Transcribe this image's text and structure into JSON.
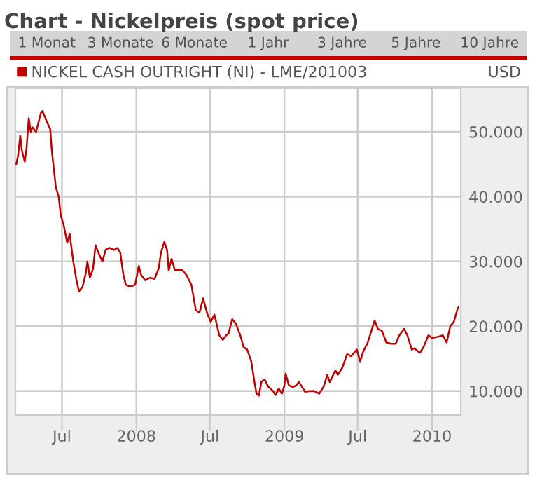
{
  "chart_data": {
    "type": "line",
    "title": "Chart - Nickelpreis (spot price)",
    "annotations": [
      "1 Monat",
      "3 Monate",
      "6 Monate",
      "1 Jahr",
      "3 Jahre",
      "5 Jahre",
      "10 Jahre",
      "USD"
    ],
    "x": [
      "2007-03-10",
      "2007-03-14",
      "2007-03-20",
      "2007-03-24",
      "2007-03-31",
      "2007-04-04",
      "2007-04-10",
      "2007-04-15",
      "2007-04-19",
      "2007-04-28",
      "2007-05-10",
      "2007-05-14",
      "2007-05-23",
      "2007-06-02",
      "2007-06-06",
      "2007-06-16",
      "2007-06-23",
      "2007-06-28",
      "2007-07-05",
      "2007-07-14",
      "2007-07-20",
      "2007-07-29",
      "2007-08-06",
      "2007-08-12",
      "2007-08-21",
      "2007-08-29",
      "2007-09-02",
      "2007-09-08",
      "2007-09-16",
      "2007-09-22",
      "2007-10-01",
      "2007-10-09",
      "2007-10-17",
      "2007-10-26",
      "2007-11-07",
      "2007-11-15",
      "2007-11-22",
      "2007-11-30",
      "2007-12-06",
      "2007-12-17",
      "2007-12-29",
      "2008-01-07",
      "2008-01-13",
      "2008-01-23",
      "2008-02-04",
      "2008-02-15",
      "2008-02-25",
      "2008-03-02",
      "2008-03-10",
      "2008-03-17",
      "2008-03-21",
      "2008-03-28",
      "2008-04-05",
      "2008-04-23",
      "2008-05-04",
      "2008-05-16",
      "2008-05-27",
      "2008-06-05",
      "2008-06-14",
      "2008-06-25",
      "2008-07-03",
      "2008-07-12",
      "2008-07-24",
      "2008-08-02",
      "2008-08-10",
      "2008-08-16",
      "2008-08-25",
      "2008-09-03",
      "2008-09-14",
      "2008-09-22",
      "2008-10-01",
      "2008-10-11",
      "2008-10-19",
      "2008-10-24",
      "2008-10-30",
      "2008-11-05",
      "2008-11-13",
      "2008-11-22",
      "2008-12-04",
      "2008-12-10",
      "2008-12-18",
      "2008-12-26",
      "2009-01-01",
      "2009-01-04",
      "2009-01-12",
      "2009-01-22",
      "2009-01-30",
      "2009-02-06",
      "2009-02-16",
      "2009-02-21",
      "2009-03-05",
      "2009-03-16",
      "2009-03-28",
      "2009-04-08",
      "2009-04-17",
      "2009-04-23",
      "2009-05-07",
      "2009-05-13",
      "2009-05-24",
      "2009-06-05",
      "2009-06-15",
      "2009-06-29",
      "2009-07-07",
      "2009-07-15",
      "2009-07-26",
      "2009-08-04",
      "2009-08-12",
      "2009-08-20",
      "2009-08-30",
      "2009-09-10",
      "2009-09-22",
      "2009-10-03",
      "2009-10-12",
      "2009-10-24",
      "2009-11-01",
      "2009-11-12",
      "2009-11-18",
      "2009-12-02",
      "2009-12-11",
      "2009-12-23",
      "2010-01-01",
      "2010-01-17",
      "2010-01-28",
      "2010-02-06",
      "2010-02-15",
      "2010-02-24",
      "2010-03-04",
      "2010-03-07"
    ],
    "series": [
      {
        "name": "NICKEL CASH OUTRIGHT (NI) - LME/201003",
        "color": "#c00000",
        "values": [
          45000,
          46100,
          49400,
          47100,
          45400,
          47100,
          52100,
          50000,
          50700,
          50000,
          52900,
          53200,
          51800,
          50400,
          47100,
          41400,
          40000,
          37100,
          35700,
          32900,
          34300,
          30000,
          27100,
          25400,
          26100,
          28200,
          30000,
          27500,
          28900,
          32500,
          31100,
          30000,
          31800,
          32100,
          31800,
          32100,
          31400,
          27900,
          26400,
          26100,
          26400,
          29300,
          27900,
          27100,
          27500,
          27300,
          28900,
          31400,
          33000,
          31800,
          28600,
          30400,
          28700,
          28700,
          27900,
          26400,
          22500,
          22100,
          24300,
          21800,
          20700,
          21800,
          18600,
          17900,
          18600,
          18900,
          21100,
          20400,
          18600,
          16800,
          16400,
          14600,
          11400,
          9600,
          9300,
          11400,
          11800,
          10700,
          10000,
          9400,
          10400,
          9600,
          10900,
          12700,
          10900,
          10600,
          10900,
          11400,
          10400,
          9900,
          10000,
          10000,
          9600,
          10700,
          12500,
          11400,
          13200,
          12500,
          13600,
          15700,
          15400,
          16400,
          14600,
          16100,
          17500,
          19300,
          20900,
          19600,
          19300,
          17500,
          17300,
          17300,
          18600,
          19600,
          18600,
          16400,
          16600,
          15900,
          16800,
          18600,
          18200,
          18400,
          18600,
          17500,
          20000,
          20700,
          22500,
          22900
        ]
      }
    ],
    "xlim": [
      "2007-03-08",
      "2010-03-13"
    ],
    "xticks": [
      {
        "value": "2007-07-01",
        "label": "Jul"
      },
      {
        "value": "2008-01-01",
        "label": "2008"
      },
      {
        "value": "2008-07-01",
        "label": "Jul"
      },
      {
        "value": "2009-01-01",
        "label": "2009"
      },
      {
        "value": "2009-07-01",
        "label": "Jul"
      },
      {
        "value": "2010-01-01",
        "label": "2010"
      }
    ],
    "ylim": [
      6300,
      56700
    ],
    "yticks": [
      {
        "value": 10000,
        "label": "10.000"
      },
      {
        "value": 20000,
        "label": "20.000"
      },
      {
        "value": 30000,
        "label": "30.000"
      },
      {
        "value": 40000,
        "label": "40.000"
      },
      {
        "value": 50000,
        "label": "50.000"
      }
    ],
    "grid": true,
    "legend": "top left",
    "line_style": "solid"
  }
}
